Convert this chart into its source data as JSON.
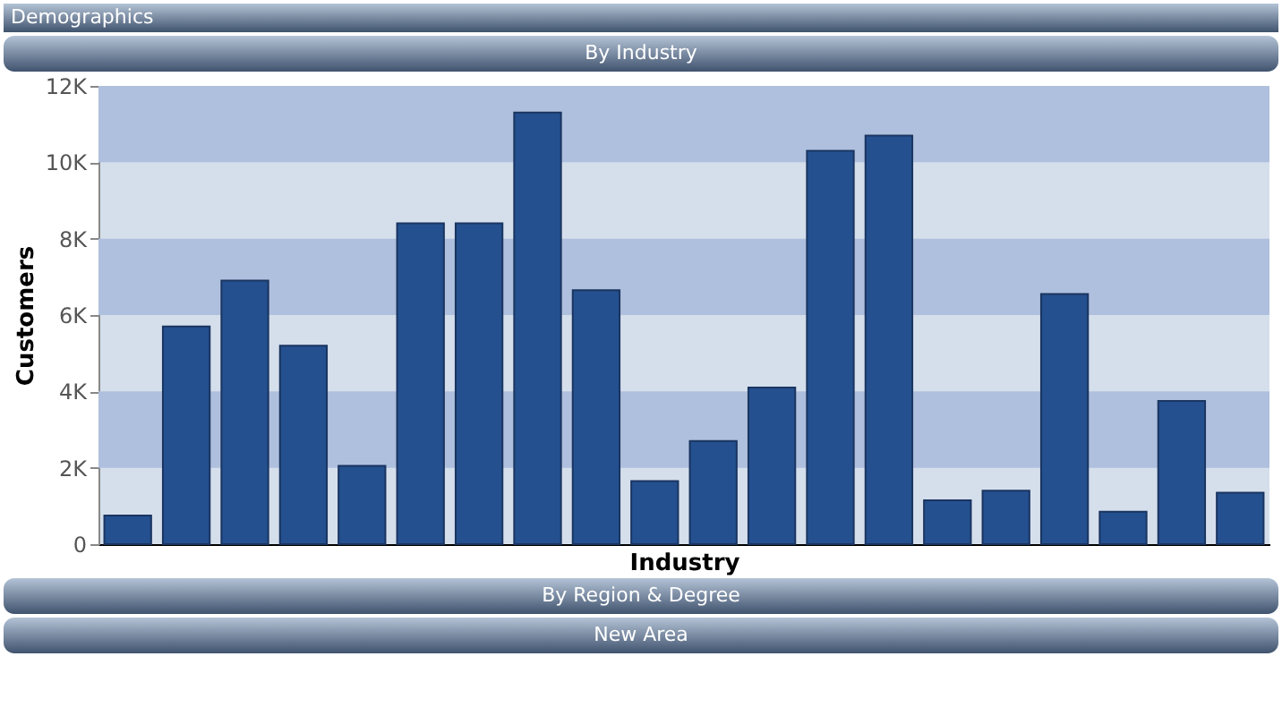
{
  "chart_data": {
    "type": "bar",
    "title": "Demographics",
    "subtitle": "By Industry",
    "annotations": [
      "By Region & Degree",
      "New Area"
    ],
    "xlabel": "Industry",
    "ylabel": "Customers",
    "categories": [
      null,
      null,
      null,
      null,
      null,
      null,
      null,
      null,
      null,
      null,
      null,
      null,
      null,
      null,
      null,
      null,
      null,
      null,
      null,
      null
    ],
    "values": [
      750,
      5700,
      6900,
      5200,
      2050,
      8400,
      8400,
      11300,
      6650,
      1650,
      2700,
      4100,
      10300,
      10700,
      1150,
      1400,
      6550,
      850,
      3750,
      1350
    ],
    "color": "#24508f",
    "ylim": [
      0,
      12000
    ],
    "yticks": [
      0,
      {
        "value": 2000,
        "label": "2K"
      },
      {
        "value": 4000,
        "label": "4K"
      },
      {
        "value": 6000,
        "label": "6K"
      },
      {
        "value": 8000,
        "label": "8K"
      },
      {
        "value": 10000,
        "label": "10K"
      },
      {
        "value": 12000,
        "label": "12K"
      }
    ],
    "bands": [
      {
        "axis": "y",
        "from": 2000,
        "to": 4000,
        "color": "#afc0de"
      },
      {
        "axis": "y",
        "from": 6000,
        "to": 8000,
        "color": "#afc0de"
      },
      {
        "axis": "y",
        "from": 10000,
        "to": 12000,
        "color": "#afc0de"
      }
    ],
    "tick_labels": "y"
  }
}
